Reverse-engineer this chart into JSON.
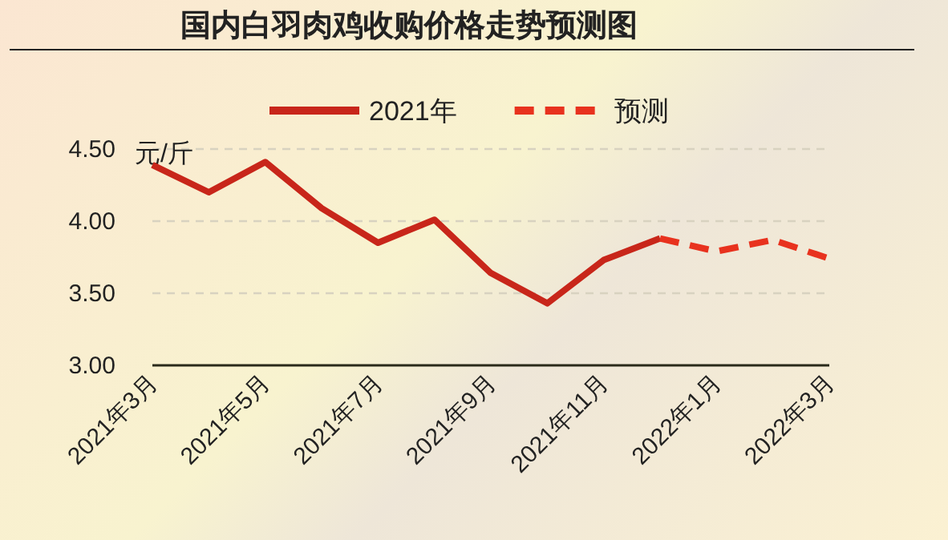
{
  "chart_data": {
    "type": "line",
    "title": "国内白羽肉鸡收购价格走势预测图",
    "ylabel": "元/斤",
    "categories": [
      "2021年3月",
      null,
      "2021年5月",
      null,
      "2021年7月",
      null,
      "2021年9月",
      null,
      "2021年11月",
      null,
      "2022年1月",
      null,
      "2022年3月"
    ],
    "series": [
      {
        "name": "2021年",
        "color": "#c8261a",
        "line_style": "solid",
        "values": [
          4.39,
          4.2,
          4.41,
          4.09,
          3.85,
          4.01,
          3.64,
          3.43,
          3.73,
          3.88,
          null,
          null,
          null
        ]
      },
      {
        "name": "预测",
        "color": "#e8321e",
        "line_style": "dashed",
        "values": [
          null,
          null,
          null,
          null,
          null,
          null,
          null,
          null,
          null,
          3.88,
          3.79,
          3.87,
          3.74
        ]
      }
    ],
    "ylim": [
      3,
      4.5
    ],
    "yticks": [
      {
        "value": 3,
        "label": "3.00"
      },
      {
        "value": 3.5,
        "label": "3.50"
      },
      {
        "value": 4,
        "label": "4.00"
      },
      {
        "value": 4.5,
        "label": "4.50"
      }
    ],
    "grid": "y",
    "legend": "top",
    "marker": "none"
  }
}
